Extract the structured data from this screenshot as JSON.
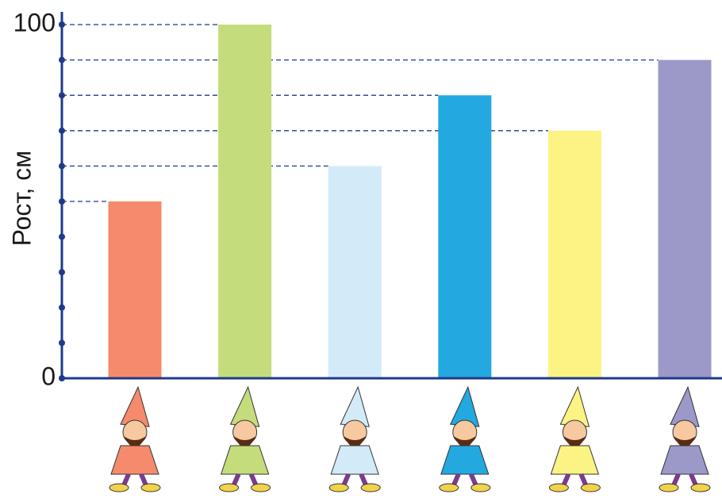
{
  "chart_data": {
    "type": "bar",
    "y_label": "Рост, см",
    "categories": [
      null,
      null,
      null,
      null,
      null,
      null
    ],
    "values": [
      50,
      100,
      60,
      80,
      70,
      90
    ],
    "colors": [
      "#f58b6c",
      "#c4dc7c",
      "#d3eaf8",
      "#23a8e0",
      "#fbf384",
      "#9c98c8"
    ],
    "ylim": [
      0,
      100
    ],
    "yticks": [
      0,
      100
    ],
    "minor_yticks": [
      10,
      20,
      30,
      40,
      50,
      60,
      70,
      80,
      90
    ],
    "guide_lines": true
  }
}
